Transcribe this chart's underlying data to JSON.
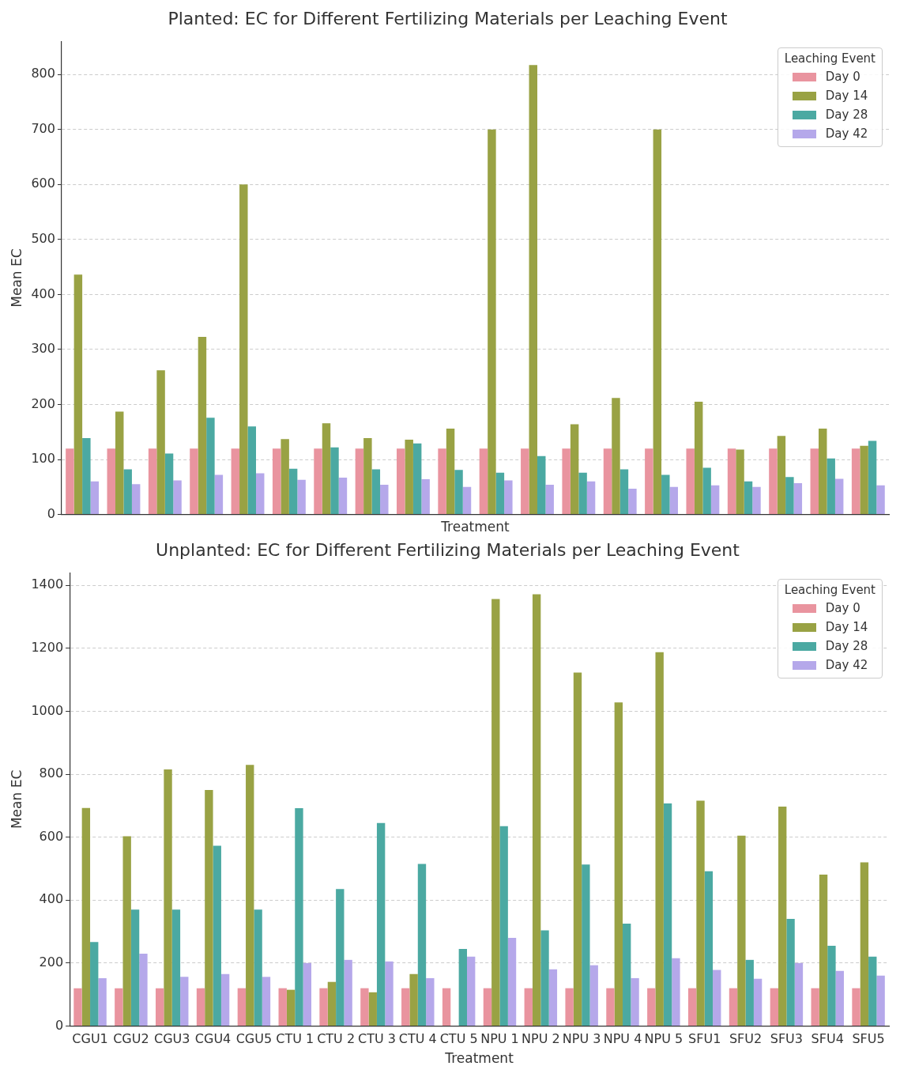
{
  "chart_data": [
    {
      "type": "bar",
      "title": "Planted: EC for Different Fertilizing Materials per Leaching Event",
      "xlabel": "Treatment",
      "ylabel": "Mean EC",
      "legend_title": "Leaching Event",
      "categories": [
        null,
        null,
        null,
        null,
        null,
        null,
        null,
        null,
        null,
        null,
        null,
        null,
        null,
        null,
        null,
        null,
        null,
        null,
        null,
        null
      ],
      "series": [
        {
          "name": "Day 0",
          "color": "#e9949f",
          "values": [
            120,
            120,
            120,
            120,
            120,
            120,
            120,
            120,
            120,
            120,
            120,
            120,
            120,
            120,
            120,
            120,
            120,
            120,
            120,
            120
          ]
        },
        {
          "name": "Day 14",
          "color": "#99a244",
          "values": [
            436,
            187,
            262,
            323,
            600,
            137,
            166,
            139,
            136,
            156,
            700,
            817,
            164,
            212,
            700,
            205,
            118,
            143,
            156,
            125
          ]
        },
        {
          "name": "Day 28",
          "color": "#4ba9a2",
          "values": [
            139,
            82,
            111,
            176,
            160,
            83,
            122,
            82,
            129,
            81,
            76,
            106,
            76,
            82,
            72,
            85,
            60,
            68,
            102,
            134
          ]
        },
        {
          "name": "Day 42",
          "color": "#b5a8ea",
          "values": [
            60,
            55,
            62,
            72,
            75,
            63,
            67,
            54,
            64,
            50,
            62,
            54,
            60,
            47,
            50,
            53,
            50,
            57,
            65,
            53
          ]
        }
      ],
      "ylim": [
        0,
        860
      ],
      "yticks": [
        0,
        100,
        200,
        300,
        400,
        500,
        600,
        700,
        800
      ],
      "grid": "y",
      "legend": "top right",
      "tick_labels": "y"
    },
    {
      "type": "bar",
      "title": "Unplanted: EC for Different Fertilizing Materials per Leaching Event",
      "xlabel": "Treatment",
      "ylabel": "Mean EC",
      "legend_title": "Leaching Event",
      "categories": [
        "CGU1",
        "CGU2",
        "CGU3",
        "CGU4",
        "CGU5",
        "CTU 1",
        "CTU 2",
        "CTU 3",
        "CTU 4",
        "CTU 5",
        "NPU 1",
        "NPU 2",
        "NPU 3",
        "NPU 4",
        "NPU 5",
        "SFU1",
        "SFU2",
        "SFU3",
        "SFU4",
        "SFU5"
      ],
      "series": [
        {
          "name": "Day 0",
          "color": "#e9949f",
          "values": [
            120,
            120,
            120,
            120,
            120,
            120,
            120,
            120,
            120,
            120,
            120,
            120,
            120,
            120,
            120,
            120,
            120,
            120,
            120,
            120
          ]
        },
        {
          "name": "Day 14",
          "color": "#99a244",
          "values": [
            693,
            603,
            815,
            750,
            830,
            115,
            140,
            107,
            165,
            null,
            1357,
            1372,
            1123,
            1028,
            1188,
            716,
            605,
            697,
            481,
            520
          ]
        },
        {
          "name": "Day 28",
          "color": "#4ba9a2",
          "values": [
            267,
            370,
            370,
            573,
            370,
            692,
            435,
            645,
            515,
            245,
            635,
            304,
            513,
            325,
            707,
            492,
            210,
            340,
            255,
            220
          ]
        },
        {
          "name": "Day 42",
          "color": "#b5a8ea",
          "values": [
            152,
            230,
            156,
            165,
            156,
            200,
            210,
            205,
            152,
            220,
            280,
            180,
            193,
            152,
            215,
            178,
            150,
            200,
            175,
            160
          ]
        }
      ],
      "ylim": [
        0,
        1440
      ],
      "yticks": [
        0,
        200,
        400,
        600,
        800,
        1000,
        1200,
        1400
      ],
      "grid": "y",
      "legend": "top right"
    }
  ]
}
